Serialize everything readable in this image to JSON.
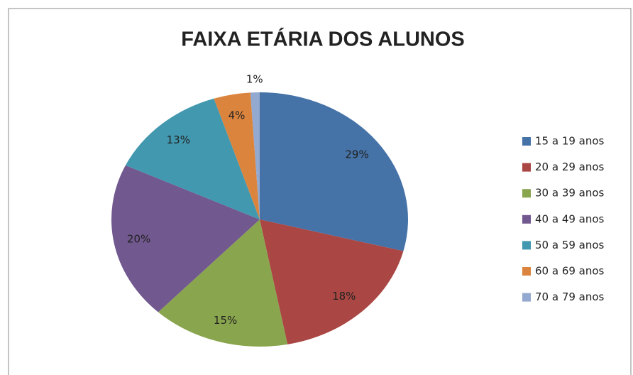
{
  "chart_data": {
    "type": "pie",
    "title": "FAIXA ETÁRIA DOS ALUNOS",
    "categories": [
      "15 a 19 anos",
      "20 a 29 anos",
      "30 a 39 anos",
      "40 a 49 anos",
      "50 a 59 anos",
      "60 a 69 anos",
      "70 a 79 anos"
    ],
    "values": [
      29,
      18,
      15,
      20,
      13,
      4,
      1
    ],
    "value_labels": [
      "29%",
      "18%",
      "15%",
      "20%",
      "13%",
      "4%",
      "1%"
    ],
    "colors": [
      "#4572A7",
      "#AA4643",
      "#89A54E",
      "#71588F",
      "#4198AF",
      "#DB843D",
      "#93A9CF"
    ],
    "legend": "right"
  }
}
